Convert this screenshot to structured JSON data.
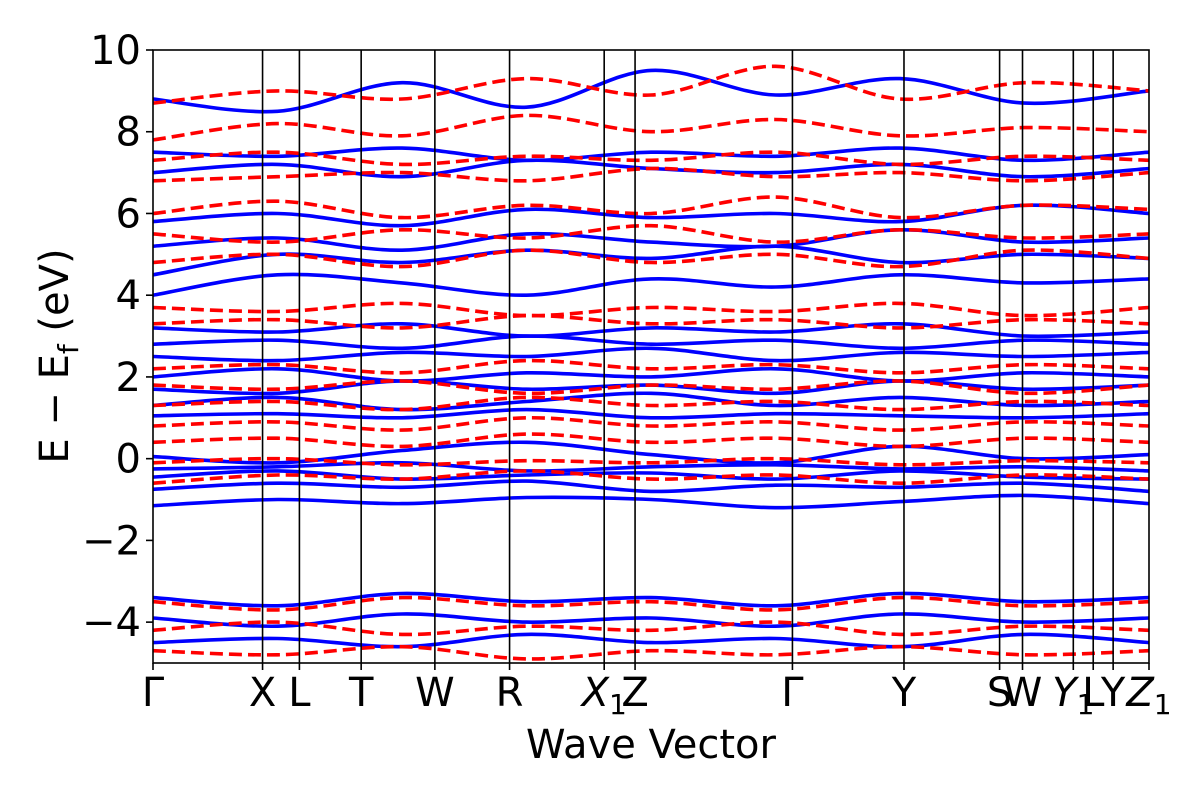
{
  "chart_data": {
    "type": "line",
    "title": "",
    "xlabel": "Wave Vector",
    "ylabel": "E − E_f (eV)",
    "ylabel_parts": {
      "main": "E − E",
      "sub": "f",
      "unit": " (eV)"
    },
    "ylim": [
      -5,
      10
    ],
    "xlim": [
      0,
      1
    ],
    "yticks": [
      -4,
      -2,
      0,
      2,
      4,
      6,
      8,
      10
    ],
    "ytick_labels": [
      "−4",
      "−2",
      "0",
      "2",
      "4",
      "6",
      "8",
      "10"
    ],
    "grid": false,
    "legend": "none",
    "kpoints": [
      {
        "label": "Γ",
        "x": 0.0
      },
      {
        "label": "X",
        "x": 0.11
      },
      {
        "label": "L",
        "x": 0.147
      },
      {
        "label": "T",
        "x": 0.209
      },
      {
        "label": "W",
        "x": 0.283
      },
      {
        "label": "R",
        "x": 0.358
      },
      {
        "label": "X",
        "sub": "1",
        "x": 0.453
      },
      {
        "label": "Z",
        "x": 0.484
      },
      {
        "label": "Γ",
        "x": 0.642
      },
      {
        "label": "Y",
        "x": 0.754
      },
      {
        "label": "S",
        "x": 0.85
      },
      {
        "label": "W",
        "x": 0.873
      },
      {
        "label": "Y",
        "sub": "1",
        "x": 0.924
      },
      {
        "label": "L",
        "x": 0.944
      },
      {
        "label": "Y",
        "x": 0.964
      },
      {
        "label": "Z",
        "sub": "1",
        "x": 1.0
      }
    ],
    "series": [
      {
        "style": "solid",
        "color": "#0000ff",
        "bands": [
          [
            -1.15,
            -1.0,
            -1.1,
            -0.95,
            -1.0,
            -1.2,
            -1.05,
            -0.9,
            -1.1
          ],
          [
            -0.75,
            -0.6,
            -0.7,
            -0.55,
            -0.8,
            -0.65,
            -0.7,
            -0.6,
            -0.8
          ],
          [
            -0.45,
            -0.3,
            -0.5,
            -0.4,
            -0.35,
            -0.5,
            -0.3,
            -0.45,
            -0.5
          ],
          [
            -0.25,
            -0.2,
            -0.1,
            -0.3,
            -0.2,
            -0.15,
            -0.25,
            -0.2,
            -0.3
          ],
          [
            0.05,
            -0.1,
            0.2,
            0.4,
            0.1,
            -0.1,
            0.3,
            0.0,
            0.1
          ],
          [
            1.05,
            1.1,
            1.0,
            1.2,
            1.0,
            1.1,
            1.05,
            1.0,
            1.1
          ],
          [
            1.3,
            1.5,
            1.2,
            1.4,
            1.6,
            1.3,
            1.5,
            1.3,
            1.4
          ],
          [
            1.7,
            1.6,
            1.9,
            1.7,
            1.8,
            1.6,
            1.9,
            1.7,
            1.8
          ],
          [
            2.0,
            2.2,
            1.9,
            2.1,
            2.0,
            2.2,
            1.9,
            2.1,
            2.0
          ],
          [
            2.5,
            2.4,
            2.6,
            2.5,
            2.7,
            2.4,
            2.6,
            2.5,
            2.6
          ],
          [
            2.8,
            2.9,
            2.7,
            3.0,
            2.8,
            2.9,
            2.7,
            2.9,
            2.8
          ],
          [
            3.2,
            3.1,
            3.3,
            3.0,
            3.2,
            3.1,
            3.3,
            3.0,
            3.1
          ],
          [
            4.0,
            4.5,
            4.3,
            4.0,
            4.4,
            4.2,
            4.5,
            4.3,
            4.4
          ],
          [
            4.5,
            5.0,
            4.8,
            5.1,
            4.9,
            5.2,
            4.8,
            5.0,
            4.9
          ],
          [
            5.2,
            5.4,
            5.1,
            5.5,
            5.3,
            5.2,
            5.6,
            5.3,
            5.4
          ],
          [
            5.8,
            6.0,
            5.7,
            6.1,
            5.9,
            6.0,
            5.8,
            6.2,
            6.0
          ],
          [
            7.0,
            7.2,
            6.9,
            7.3,
            7.1,
            7.0,
            7.2,
            6.9,
            7.1
          ],
          [
            7.5,
            7.4,
            7.6,
            7.3,
            7.5,
            7.4,
            7.6,
            7.3,
            7.5
          ],
          [
            8.8,
            8.5,
            9.2,
            8.6,
            9.5,
            8.9,
            9.3,
            8.7,
            9.0
          ],
          [
            -3.4,
            -3.6,
            -3.3,
            -3.5,
            -3.4,
            -3.6,
            -3.3,
            -3.5,
            -3.4
          ],
          [
            -3.9,
            -4.1,
            -3.8,
            -4.0,
            -3.9,
            -4.1,
            -3.8,
            -4.0,
            -3.9
          ],
          [
            -4.5,
            -4.4,
            -4.6,
            -4.3,
            -4.5,
            -4.4,
            -4.6,
            -4.3,
            -4.5
          ]
        ]
      },
      {
        "style": "dashed",
        "color": "#ff0000",
        "bands": [
          [
            -0.6,
            -0.4,
            -0.5,
            -0.3,
            -0.5,
            -0.4,
            -0.6,
            -0.4,
            -0.5
          ],
          [
            -0.1,
            0.0,
            -0.15,
            -0.05,
            -0.1,
            0.0,
            -0.15,
            -0.05,
            -0.1
          ],
          [
            0.4,
            0.5,
            0.3,
            0.6,
            0.4,
            0.5,
            0.3,
            0.5,
            0.4
          ],
          [
            0.8,
            0.9,
            0.7,
            1.0,
            0.8,
            0.9,
            0.7,
            0.9,
            0.8
          ],
          [
            1.3,
            1.4,
            1.2,
            1.5,
            1.3,
            1.4,
            1.2,
            1.4,
            1.3
          ],
          [
            1.8,
            1.7,
            1.9,
            1.6,
            1.8,
            1.7,
            1.9,
            1.6,
            1.8
          ],
          [
            2.2,
            2.3,
            2.1,
            2.4,
            2.2,
            2.3,
            2.1,
            2.3,
            2.2
          ],
          [
            3.3,
            3.4,
            3.2,
            3.5,
            3.3,
            3.4,
            3.2,
            3.4,
            3.3
          ],
          [
            3.7,
            3.6,
            3.8,
            3.5,
            3.7,
            3.6,
            3.8,
            3.5,
            3.7
          ],
          [
            4.8,
            5.0,
            4.7,
            5.1,
            4.8,
            5.0,
            4.7,
            5.1,
            4.9
          ],
          [
            5.5,
            5.3,
            5.6,
            5.4,
            5.7,
            5.3,
            5.6,
            5.4,
            5.5
          ],
          [
            6.0,
            6.3,
            5.9,
            6.2,
            6.0,
            6.4,
            5.9,
            6.2,
            6.1
          ],
          [
            6.8,
            6.9,
            7.0,
            6.8,
            7.1,
            6.9,
            7.0,
            6.8,
            7.0
          ],
          [
            7.3,
            7.5,
            7.2,
            7.4,
            7.3,
            7.5,
            7.2,
            7.4,
            7.3
          ],
          [
            7.8,
            8.2,
            7.9,
            8.4,
            8.0,
            8.3,
            7.9,
            8.1,
            8.0
          ],
          [
            8.7,
            9.0,
            8.8,
            9.3,
            8.9,
            9.6,
            8.8,
            9.2,
            9.0
          ],
          [
            -3.5,
            -3.7,
            -3.4,
            -3.6,
            -3.5,
            -3.7,
            -3.4,
            -3.6,
            -3.5
          ],
          [
            -4.2,
            -4.0,
            -4.3,
            -4.1,
            -4.2,
            -4.0,
            -4.3,
            -4.1,
            -4.2
          ],
          [
            -4.7,
            -4.8,
            -4.6,
            -4.9,
            -4.7,
            -4.8,
            -4.6,
            -4.8,
            -4.7
          ]
        ]
      }
    ]
  }
}
